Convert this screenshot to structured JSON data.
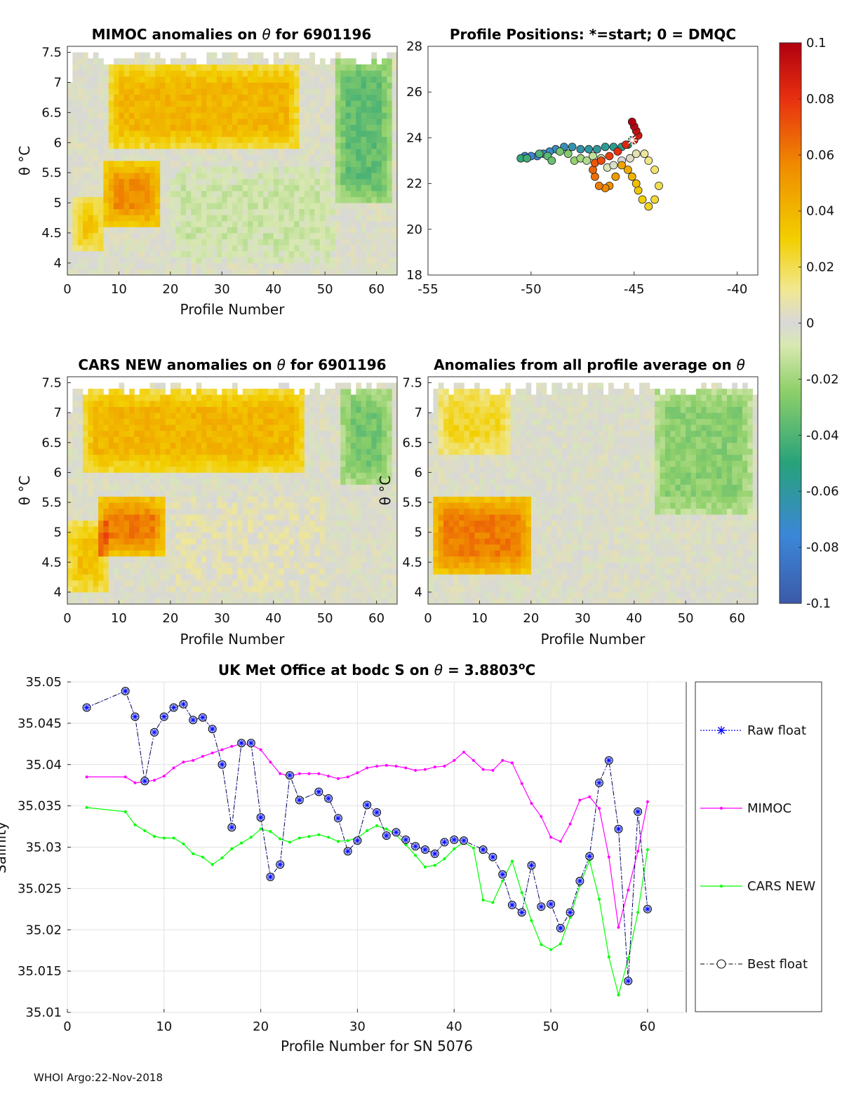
{
  "colors": {
    "mimoc": "#ff00ff",
    "cars": "#00ff00",
    "raw": "#0000ff",
    "best": "#000000",
    "best_marker_fill": "#b8c4ff",
    "neutral": "#d8d8d8"
  },
  "footer": "WHOI Argo:22-Nov-2018",
  "chart_data": [
    {
      "id": "mimoc",
      "type": "heatmap",
      "title_pre": "MIMOC anomalies on ",
      "title_sym": "θ",
      "title_post": "  for 6901196",
      "xlabel": "Profile Number",
      "ylabel": "θ °C",
      "xlim": [
        0,
        64
      ],
      "ylim": [
        3.8,
        7.6
      ],
      "xticks": [
        0,
        10,
        20,
        30,
        40,
        50,
        60
      ],
      "yticks": [
        4,
        4.5,
        5,
        5.5,
        6,
        6.5,
        7,
        7.5
      ],
      "ytick_labels": [
        "4",
        "4.5",
        "5",
        "5.5",
        "6",
        "6.5",
        "7",
        "7.5"
      ],
      "regions": [
        {
          "name": "upper-warm",
          "x": [
            8,
            45
          ],
          "y": [
            5.9,
            7.3
          ],
          "value": 0.04
        },
        {
          "name": "mid-warm",
          "x": [
            7,
            18
          ],
          "y": [
            4.6,
            5.7
          ],
          "value": 0.055
        },
        {
          "name": "left-warm",
          "x": [
            1,
            7
          ],
          "y": [
            4.2,
            5.1
          ],
          "value": 0.035
        },
        {
          "name": "mid-cool",
          "x": [
            20,
            52
          ],
          "y": [
            4.0,
            5.6
          ],
          "value": -0.01
        },
        {
          "name": "right-cool",
          "x": [
            52,
            63
          ],
          "y": [
            5.0,
            7.4
          ],
          "value": -0.035
        }
      ]
    },
    {
      "id": "positions",
      "type": "scatter",
      "title": "Profile Positions: *=start; 0 = DMQC",
      "xlim": [
        -55,
        -39
      ],
      "ylim": [
        18,
        28
      ],
      "xticks": [
        -55,
        -50,
        -45,
        -40
      ],
      "yticks": [
        18,
        20,
        22,
        24,
        26,
        28
      ],
      "start_marker": "*",
      "points": [
        [
          -45.1,
          23.9
        ],
        [
          -45.3,
          23.7
        ],
        [
          -45.6,
          23.6
        ],
        [
          -46.0,
          23.6
        ],
        [
          -46.4,
          23.6
        ],
        [
          -46.8,
          23.5
        ],
        [
          -47.2,
          23.5
        ],
        [
          -47.6,
          23.5
        ],
        [
          -48.0,
          23.6
        ],
        [
          -48.4,
          23.6
        ],
        [
          -48.8,
          23.5
        ],
        [
          -49.1,
          23.4
        ],
        [
          -49.4,
          23.3
        ],
        [
          -49.7,
          23.2
        ],
        [
          -50.0,
          23.2
        ],
        [
          -50.3,
          23.2
        ],
        [
          -50.5,
          23.1
        ],
        [
          -50.2,
          23.1
        ],
        [
          -49.6,
          23.3
        ],
        [
          -49.2,
          23.2
        ],
        [
          -49.0,
          23.0
        ],
        [
          -48.6,
          23.4
        ],
        [
          -48.2,
          23.3
        ],
        [
          -47.9,
          23.0
        ],
        [
          -47.6,
          23.1
        ],
        [
          -47.3,
          23.0
        ],
        [
          -47.0,
          23.2
        ],
        [
          -46.6,
          23.1
        ],
        [
          -46.3,
          22.7
        ],
        [
          -46.0,
          22.8
        ],
        [
          -45.6,
          23.0
        ],
        [
          -45.2,
          23.1
        ],
        [
          -44.9,
          23.3
        ],
        [
          -44.5,
          23.3
        ],
        [
          -44.3,
          23.0
        ],
        [
          -44.0,
          22.6
        ],
        [
          -43.8,
          21.9
        ],
        [
          -44.0,
          21.3
        ],
        [
          -44.3,
          21.0
        ],
        [
          -44.6,
          21.3
        ],
        [
          -44.8,
          21.7
        ],
        [
          -44.9,
          22.0
        ],
        [
          -45.1,
          22.3
        ],
        [
          -45.3,
          22.6
        ],
        [
          -45.6,
          22.8
        ],
        [
          -45.9,
          22.3
        ],
        [
          -46.2,
          21.9
        ],
        [
          -46.4,
          21.8
        ],
        [
          -46.7,
          21.9
        ],
        [
          -46.9,
          22.3
        ],
        [
          -47.0,
          22.6
        ],
        [
          -46.9,
          22.9
        ],
        [
          -46.6,
          23.0
        ],
        [
          -46.2,
          23.2
        ],
        [
          -45.8,
          23.4
        ],
        [
          -45.4,
          23.7
        ],
        [
          -45.0,
          23.9
        ],
        [
          -44.8,
          24.1
        ],
        [
          -44.9,
          24.3
        ],
        [
          -45.0,
          24.5
        ],
        [
          -45.1,
          24.7
        ]
      ]
    },
    {
      "id": "colorbar",
      "type": "colorbar",
      "range": [
        -0.1,
        0.1
      ],
      "ticks": [
        0.1,
        0.08,
        0.06,
        0.04,
        0.02,
        0,
        -0.02,
        -0.04,
        -0.06,
        -0.08,
        -0.1
      ],
      "tick_labels": [
        "0.1",
        "0.08",
        "0.06",
        "0.04",
        "0.02",
        "0",
        "-0.02",
        "-0.04",
        "-0.06",
        "-0.08",
        "-0.1"
      ]
    },
    {
      "id": "cars",
      "type": "heatmap",
      "title_pre": "CARS NEW anomalies on ",
      "title_sym": "θ",
      "title_post": " for 6901196",
      "xlabel": "Profile Number",
      "ylabel": "θ °C",
      "xlim": [
        0,
        64
      ],
      "ylim": [
        3.8,
        7.6
      ],
      "xticks": [
        0,
        10,
        20,
        30,
        40,
        50,
        60
      ],
      "yticks": [
        4,
        4.5,
        5,
        5.5,
        6,
        6.5,
        7,
        7.5
      ],
      "ytick_labels": [
        "4",
        "4.5",
        "5",
        "5.5",
        "6",
        "6.5",
        "7",
        "7.5"
      ],
      "regions": [
        {
          "name": "upper-warm",
          "x": [
            3,
            46
          ],
          "y": [
            6.0,
            7.4
          ],
          "value": 0.04
        },
        {
          "name": "mid-warm",
          "x": [
            6,
            19
          ],
          "y": [
            4.6,
            5.6
          ],
          "value": 0.06
        },
        {
          "name": "left-warm",
          "x": [
            0,
            8
          ],
          "y": [
            4.0,
            5.2
          ],
          "value": 0.035
        },
        {
          "name": "mid-neutral",
          "x": [
            20,
            50
          ],
          "y": [
            4.0,
            5.6
          ],
          "value": 0.005
        },
        {
          "name": "right-cool",
          "x": [
            53,
            63
          ],
          "y": [
            5.8,
            7.4
          ],
          "value": -0.03
        }
      ]
    },
    {
      "id": "allavg",
      "type": "heatmap",
      "title_pre": "Anomalies from all profile average on ",
      "title_sym": "θ",
      "title_post": "",
      "xlabel": "Profile Number",
      "ylabel": "θ °C",
      "xlim": [
        0,
        64
      ],
      "ylim": [
        3.8,
        7.6
      ],
      "xticks": [
        0,
        10,
        20,
        30,
        40,
        50,
        60
      ],
      "yticks": [
        4,
        4.5,
        5,
        5.5,
        6,
        6.5,
        7,
        7.5
      ],
      "ytick_labels": [
        "4",
        "4.5",
        "5",
        "5.5",
        "6",
        "6.5",
        "7",
        "7.5"
      ],
      "regions": [
        {
          "name": "low-warm",
          "x": [
            1,
            20
          ],
          "y": [
            4.3,
            5.6
          ],
          "value": 0.06
        },
        {
          "name": "top-warm",
          "x": [
            2,
            16
          ],
          "y": [
            6.3,
            7.4
          ],
          "value": 0.025
        },
        {
          "name": "right-cool",
          "x": [
            44,
            63
          ],
          "y": [
            5.3,
            7.4
          ],
          "value": -0.025
        },
        {
          "name": "mid-neutral",
          "x": [
            20,
            44
          ],
          "y": [
            4.0,
            7.4
          ],
          "value": 0.0
        }
      ]
    },
    {
      "id": "salinity",
      "type": "line",
      "title_pre": "UK Met Office at bodc S on ",
      "title_sym": "θ",
      "title_post": " = 3.8803",
      "title_sup": "o",
      "title_end": "C",
      "xlabel": "Profile Number for SN 5076",
      "ylabel": "Salinity",
      "xlim": [
        0,
        64
      ],
      "ylim": [
        35.01,
        35.05
      ],
      "xticks": [
        0,
        10,
        20,
        30,
        40,
        50,
        60
      ],
      "yticks": [
        35.01,
        35.015,
        35.02,
        35.025,
        35.03,
        35.035,
        35.04,
        35.045,
        35.05
      ],
      "ytick_labels": [
        "35.01",
        "35.015",
        "35.02",
        "35.025",
        "35.03",
        "35.035",
        "35.04",
        "35.045",
        "35.05"
      ],
      "legend": [
        "Raw float",
        "MIMOC",
        "CARS NEW",
        "Best float"
      ],
      "series": [
        {
          "name": "MIMOC",
          "x": [
            2,
            6,
            7,
            8,
            9,
            10,
            11,
            12,
            13,
            14,
            15,
            16,
            17,
            18,
            19,
            20,
            21,
            22,
            23,
            24,
            25,
            26,
            27,
            28,
            29,
            30,
            31,
            32,
            33,
            34,
            35,
            36,
            37,
            38,
            39,
            40,
            41,
            42,
            43,
            44,
            45,
            46,
            47,
            48,
            49,
            50,
            51,
            52,
            53,
            54,
            55,
            56,
            57,
            58,
            59,
            60
          ],
          "y": [
            35.0385,
            35.0385,
            35.0378,
            35.0379,
            35.0381,
            35.0386,
            35.0396,
            35.0403,
            35.0405,
            35.041,
            35.0414,
            35.0418,
            35.0422,
            35.0425,
            35.0424,
            35.0418,
            35.0403,
            35.0389,
            35.0386,
            35.0389,
            35.0389,
            35.0389,
            35.0386,
            35.0383,
            35.0385,
            35.039,
            35.0396,
            35.0398,
            35.0399,
            35.0398,
            35.0396,
            35.0393,
            35.0394,
            35.0397,
            35.0398,
            35.0405,
            35.0415,
            35.0405,
            35.0394,
            35.0393,
            35.0405,
            35.0402,
            35.0377,
            35.0353,
            35.0337,
            35.0312,
            35.0307,
            35.0328,
            35.0357,
            35.0361,
            35.0347,
            35.0288,
            35.0203,
            35.0248,
            35.0295,
            35.0355
          ]
        },
        {
          "name": "CARS NEW",
          "x": [
            2,
            6,
            7,
            8,
            9,
            10,
            11,
            12,
            13,
            14,
            15,
            16,
            17,
            18,
            19,
            20,
            21,
            22,
            23,
            24,
            25,
            26,
            27,
            28,
            29,
            30,
            31,
            32,
            33,
            34,
            35,
            36,
            37,
            38,
            39,
            40,
            41,
            42,
            43,
            44,
            45,
            46,
            47,
            48,
            49,
            50,
            51,
            52,
            53,
            54,
            55,
            56,
            57,
            58,
            59,
            60
          ],
          "y": [
            35.0348,
            35.0343,
            35.0327,
            35.032,
            35.0313,
            35.0311,
            35.0311,
            35.0304,
            35.0292,
            35.0288,
            35.0279,
            35.0287,
            35.0298,
            35.0305,
            35.0312,
            35.0322,
            35.0319,
            35.031,
            35.0306,
            35.0311,
            35.0313,
            35.0315,
            35.0312,
            35.0307,
            35.0308,
            35.0311,
            35.032,
            35.0326,
            35.0322,
            35.0315,
            35.0303,
            35.029,
            35.0276,
            35.0278,
            35.0286,
            35.0298,
            35.0306,
            35.0299,
            35.0236,
            35.0233,
            35.0259,
            35.0283,
            35.0245,
            35.0211,
            35.0182,
            35.0176,
            35.0183,
            35.0215,
            35.0254,
            35.0284,
            35.0237,
            35.0167,
            35.0121,
            35.0165,
            35.0221,
            35.0297
          ]
        },
        {
          "name": "Best float",
          "x": [
            2,
            6,
            7,
            8,
            9,
            10,
            11,
            12,
            13,
            14,
            15,
            16,
            17,
            18,
            19,
            20,
            21,
            22,
            23,
            24,
            26,
            27,
            28,
            29,
            30,
            31,
            32,
            33,
            34,
            35,
            36,
            37,
            38,
            39,
            40,
            41,
            43,
            44,
            45,
            46,
            47,
            48,
            49,
            50,
            51,
            52,
            53,
            54,
            55,
            56,
            57,
            58,
            59,
            60
          ],
          "y": [
            35.0469,
            35.0489,
            35.0458,
            35.038,
            35.0439,
            35.0458,
            35.0469,
            35.0473,
            35.0454,
            35.0457,
            35.0443,
            35.04,
            35.0324,
            35.0426,
            35.0426,
            35.0336,
            35.0264,
            35.0279,
            35.0387,
            35.0357,
            35.0367,
            35.0359,
            35.0335,
            35.0295,
            35.0308,
            35.0351,
            35.0342,
            35.0314,
            35.0318,
            35.0309,
            35.0301,
            35.0297,
            35.0292,
            35.0306,
            35.0309,
            35.0308,
            35.0297,
            35.0288,
            35.0267,
            35.023,
            35.0221,
            35.0278,
            35.0228,
            35.0231,
            35.0202,
            35.0221,
            35.0259,
            35.0289,
            35.0378,
            35.0405,
            35.0322,
            35.0138,
            35.0343,
            35.0225
          ]
        }
      ]
    }
  ]
}
